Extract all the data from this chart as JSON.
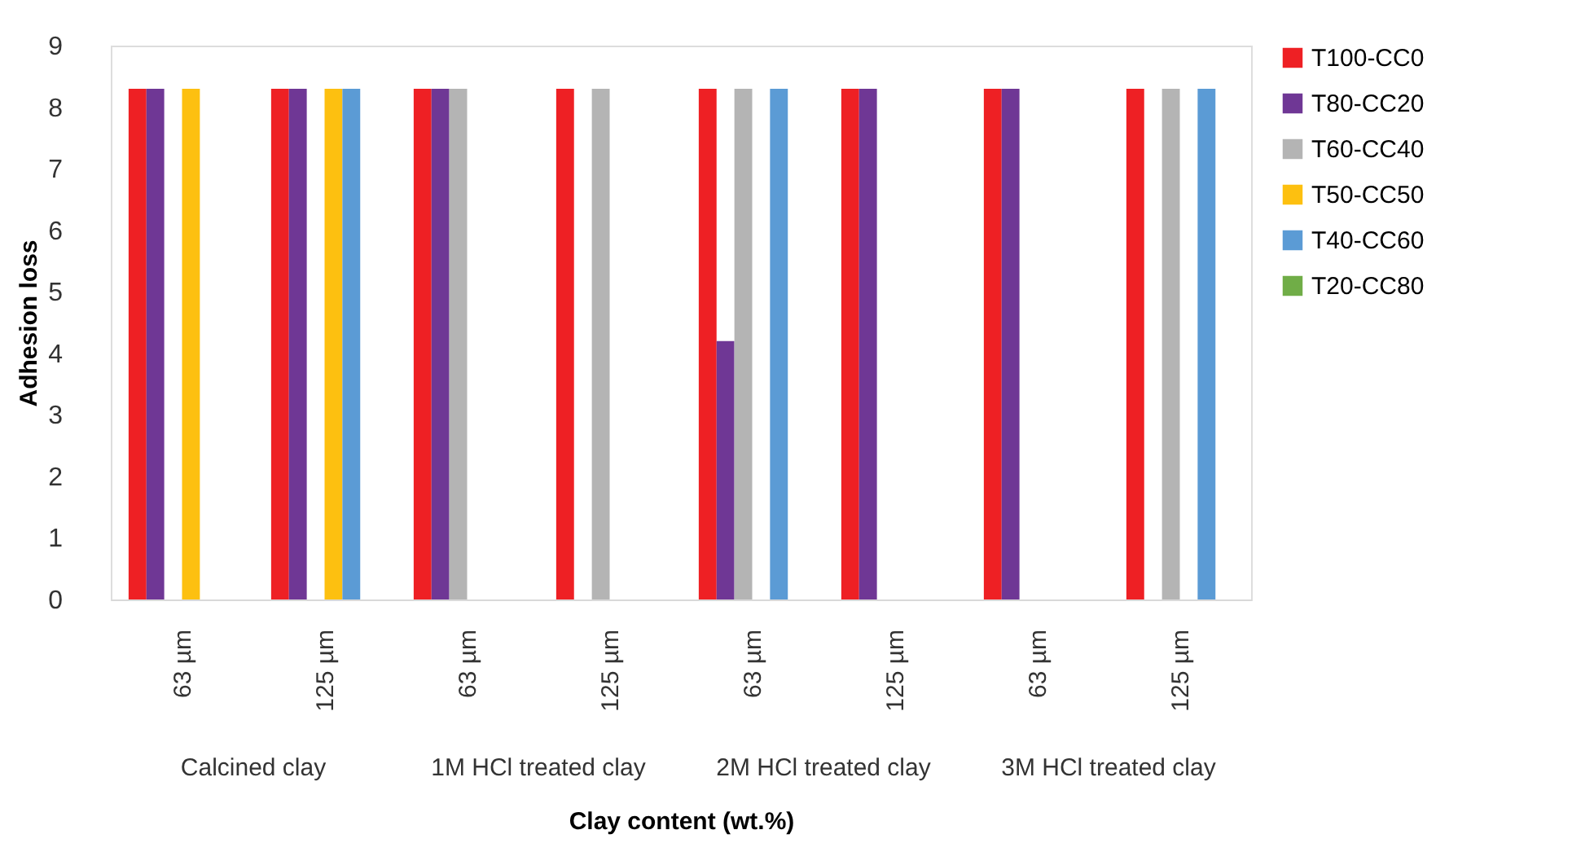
{
  "chart_data": {
    "type": "bar",
    "xlabel": "Clay content (wt.%)",
    "ylabel": "Adhesion loss",
    "categories": [
      "63 µm",
      "125 µm",
      "63 µm",
      "125 µm",
      "63 µm",
      "125 µm",
      "63 µm",
      "125 µm"
    ],
    "annotations": [
      "Calcined clay",
      "1M HCl treated clay",
      "2M  HCl treated clay",
      "3M  HCl treated clay"
    ],
    "series": [
      {
        "name": "T100-CC0",
        "color": "#ee2024",
        "values": [
          8.3,
          8.3,
          8.3,
          8.3,
          8.3,
          8.3,
          8.3,
          8.3
        ]
      },
      {
        "name": "T80-CC20",
        "color": "#6f3795",
        "values": [
          8.3,
          8.3,
          8.3,
          0,
          4.2,
          8.3,
          8.3,
          0
        ]
      },
      {
        "name": "T60-CC40",
        "color": "#b4b4b4",
        "values": [
          0,
          0,
          8.3,
          8.3,
          8.3,
          0,
          0,
          8.3
        ]
      },
      {
        "name": "T50-CC50",
        "color": "#fdc010",
        "values": [
          8.3,
          8.3,
          0,
          0,
          0,
          0,
          0,
          0
        ]
      },
      {
        "name": "T40-CC60",
        "color": "#5b9bd5",
        "values": [
          0,
          8.3,
          0,
          0,
          8.3,
          0,
          0,
          8.3
        ]
      },
      {
        "name": "T20-CC80",
        "color": "#70ad47",
        "values": [
          0,
          0,
          0,
          0,
          0,
          0,
          0,
          0
        ]
      }
    ],
    "ylim": [
      0,
      9
    ],
    "yticks": [
      0,
      1,
      2,
      3,
      4,
      5,
      6,
      7,
      8,
      9
    ],
    "grid": false,
    "legend": "right"
  }
}
